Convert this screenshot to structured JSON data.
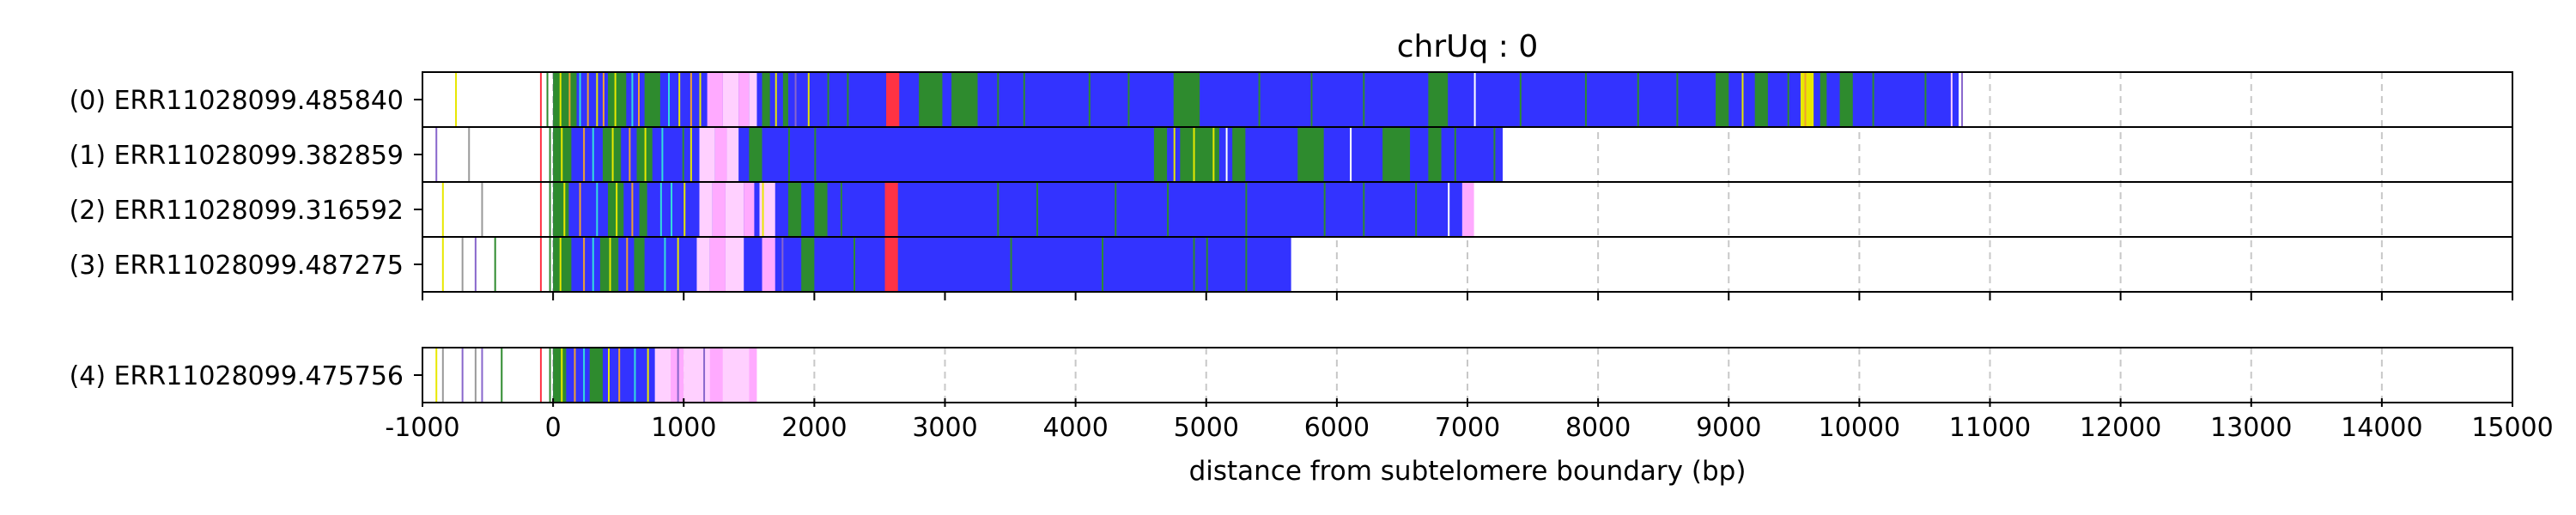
{
  "chart_data": {
    "type": "bar",
    "title": "chrUq : 0",
    "xlabel": "distance from subtelomere boundary (bp)",
    "ylabel": "",
    "xlim": [
      -1000,
      15000
    ],
    "xticks": [
      -1000,
      0,
      1000,
      2000,
      3000,
      4000,
      5000,
      6000,
      7000,
      8000,
      9000,
      10000,
      11000,
      12000,
      13000,
      14000,
      15000
    ],
    "grid": "vertical dashed at x ticks",
    "colors": {
      "main": "#3333ff",
      "green": "#2e8b2e",
      "yellow": "#e8e800",
      "orange": "#f0a030",
      "pink": "#ffaaff",
      "lightpink": "#ffd0ff",
      "red": "#ff3344",
      "cyan": "#33dddd",
      "grey": "#999999",
      "purple": "#8866cc"
    },
    "groups": [
      {
        "reads": [
          {
            "label": "(0) ERR11028099.485840",
            "read_end": 10800,
            "main_start": 0,
            "main_end": 10760,
            "segments": [
              {
                "s": 0,
                "e": 180,
                "c": "green"
              },
              {
                "s": 420,
                "e": 560,
                "c": "green"
              },
              {
                "s": 700,
                "e": 820,
                "c": "green"
              },
              {
                "s": 1180,
                "e": 1300,
                "c": "pink"
              },
              {
                "s": 1300,
                "e": 1420,
                "c": "lightpink"
              },
              {
                "s": 1420,
                "e": 1500,
                "c": "pink"
              },
              {
                "s": 1500,
                "e": 1560,
                "c": "lightpink"
              },
              {
                "s": 1600,
                "e": 1660,
                "c": "green"
              },
              {
                "s": 1760,
                "e": 1800,
                "c": "green"
              },
              {
                "s": 2550,
                "e": 2650,
                "c": "red"
              },
              {
                "s": 2800,
                "e": 2980,
                "c": "green"
              },
              {
                "s": 3050,
                "e": 3250,
                "c": "green"
              },
              {
                "s": 4750,
                "e": 4950,
                "c": "green"
              },
              {
                "s": 6700,
                "e": 6850,
                "c": "green"
              },
              {
                "s": 8900,
                "e": 9000,
                "c": "green"
              },
              {
                "s": 9200,
                "e": 9300,
                "c": "green"
              },
              {
                "s": 9550,
                "e": 9650,
                "c": "yellow"
              },
              {
                "s": 9700,
                "e": 9750,
                "c": "green"
              },
              {
                "s": 9850,
                "e": 9950,
                "c": "green"
              }
            ],
            "lines": [
              {
                "x": -750,
                "c": "yellow"
              },
              {
                "x": -100,
                "c": "red"
              },
              {
                "x": -50,
                "c": "green"
              },
              {
                "x": 50,
                "c": "yellow"
              },
              {
                "x": 120,
                "c": "orange"
              },
              {
                "x": 200,
                "c": "cyan"
              },
              {
                "x": 260,
                "c": "orange"
              },
              {
                "x": 330,
                "c": "yellow"
              },
              {
                "x": 380,
                "c": "orange"
              },
              {
                "x": 470,
                "c": "yellow"
              },
              {
                "x": 600,
                "c": "cyan"
              },
              {
                "x": 650,
                "c": "orange"
              },
              {
                "x": 880,
                "c": "cyan"
              },
              {
                "x": 960,
                "c": "yellow"
              },
              {
                "x": 1050,
                "c": "orange"
              },
              {
                "x": 1120,
                "c": "yellow"
              },
              {
                "x": 1700,
                "c": "yellow"
              },
              {
                "x": 1850,
                "c": "purple"
              },
              {
                "x": 1950,
                "c": "yellow"
              },
              {
                "x": 2100,
                "c": "green"
              },
              {
                "x": 2250,
                "c": "green"
              },
              {
                "x": 3400,
                "c": "green"
              },
              {
                "x": 3600,
                "c": "green"
              },
              {
                "x": 4100,
                "c": "green"
              },
              {
                "x": 4400,
                "c": "green"
              },
              {
                "x": 5400,
                "c": "green"
              },
              {
                "x": 5800,
                "c": "green"
              },
              {
                "x": 6200,
                "c": "green"
              },
              {
                "x": 7050,
                "c": "white"
              },
              {
                "x": 7400,
                "c": "green"
              },
              {
                "x": 7900,
                "c": "green"
              },
              {
                "x": 8300,
                "c": "green"
              },
              {
                "x": 8600,
                "c": "green"
              },
              {
                "x": 9100,
                "c": "yellow"
              },
              {
                "x": 9450,
                "c": "green"
              },
              {
                "x": 9580,
                "c": "orange"
              },
              {
                "x": 10100,
                "c": "green"
              },
              {
                "x": 10500,
                "c": "green"
              },
              {
                "x": 10700,
                "c": "lightpink"
              },
              {
                "x": 10780,
                "c": "purple"
              }
            ]
          },
          {
            "label": "(1) ERR11028099.382859",
            "read_end": 7270,
            "main_start": 0,
            "main_end": 7270,
            "segments": [
              {
                "s": 0,
                "e": 140,
                "c": "green"
              },
              {
                "s": 380,
                "e": 520,
                "c": "green"
              },
              {
                "s": 640,
                "e": 760,
                "c": "green"
              },
              {
                "s": 1120,
                "e": 1240,
                "c": "lightpink"
              },
              {
                "s": 1240,
                "e": 1330,
                "c": "pink"
              },
              {
                "s": 1330,
                "e": 1420,
                "c": "lightpink"
              },
              {
                "s": 1500,
                "e": 1600,
                "c": "green"
              },
              {
                "s": 4600,
                "e": 4700,
                "c": "green"
              },
              {
                "s": 4800,
                "e": 5100,
                "c": "green"
              },
              {
                "s": 5200,
                "e": 5300,
                "c": "green"
              },
              {
                "s": 5700,
                "e": 5900,
                "c": "green"
              },
              {
                "s": 6350,
                "e": 6560,
                "c": "green"
              },
              {
                "s": 6700,
                "e": 6800,
                "c": "green"
              }
            ],
            "lines": [
              {
                "x": -900,
                "c": "purple"
              },
              {
                "x": -650,
                "c": "grey"
              },
              {
                "x": -100,
                "c": "red"
              },
              {
                "x": -30,
                "c": "green"
              },
              {
                "x": 60,
                "c": "yellow"
              },
              {
                "x": 230,
                "c": "orange"
              },
              {
                "x": 300,
                "c": "cyan"
              },
              {
                "x": 450,
                "c": "yellow"
              },
              {
                "x": 580,
                "c": "orange"
              },
              {
                "x": 700,
                "c": "yellow"
              },
              {
                "x": 830,
                "c": "cyan"
              },
              {
                "x": 990,
                "c": "green"
              },
              {
                "x": 1050,
                "c": "yellow"
              },
              {
                "x": 1800,
                "c": "green"
              },
              {
                "x": 2000,
                "c": "green"
              },
              {
                "x": 4750,
                "c": "yellow"
              },
              {
                "x": 4900,
                "c": "yellow"
              },
              {
                "x": 5050,
                "c": "yellow"
              },
              {
                "x": 5150,
                "c": "white"
              },
              {
                "x": 6100,
                "c": "white"
              },
              {
                "x": 6900,
                "c": "green"
              },
              {
                "x": 7200,
                "c": "green"
              }
            ]
          },
          {
            "label": "(2) ERR11028099.316592",
            "read_end": 7050,
            "main_start": 0,
            "main_end": 6960,
            "segments": [
              {
                "s": 0,
                "e": 120,
                "c": "green"
              },
              {
                "s": 420,
                "e": 540,
                "c": "green"
              },
              {
                "s": 660,
                "e": 720,
                "c": "green"
              },
              {
                "s": 1120,
                "e": 1220,
                "c": "lightpink"
              },
              {
                "s": 1220,
                "e": 1320,
                "c": "pink"
              },
              {
                "s": 1320,
                "e": 1460,
                "c": "lightpink"
              },
              {
                "s": 1460,
                "e": 1540,
                "c": "pink"
              },
              {
                "s": 1580,
                "e": 1700,
                "c": "lightpink"
              },
              {
                "s": 1800,
                "e": 1900,
                "c": "green"
              },
              {
                "s": 2000,
                "e": 2100,
                "c": "green"
              },
              {
                "s": 2540,
                "e": 2640,
                "c": "red"
              },
              {
                "s": 6960,
                "e": 7050,
                "c": "pink"
              }
            ],
            "lines": [
              {
                "x": -850,
                "c": "yellow"
              },
              {
                "x": -550,
                "c": "grey"
              },
              {
                "x": -100,
                "c": "red"
              },
              {
                "x": -30,
                "c": "green"
              },
              {
                "x": 80,
                "c": "yellow"
              },
              {
                "x": 200,
                "c": "orange"
              },
              {
                "x": 330,
                "c": "cyan"
              },
              {
                "x": 480,
                "c": "yellow"
              },
              {
                "x": 600,
                "c": "orange"
              },
              {
                "x": 820,
                "c": "cyan"
              },
              {
                "x": 900,
                "c": "cyan"
              },
              {
                "x": 1000,
                "c": "yellow"
              },
              {
                "x": 1600,
                "c": "yellow"
              },
              {
                "x": 2200,
                "c": "green"
              },
              {
                "x": 3400,
                "c": "green"
              },
              {
                "x": 3700,
                "c": "green"
              },
              {
                "x": 4300,
                "c": "green"
              },
              {
                "x": 4700,
                "c": "green"
              },
              {
                "x": 5300,
                "c": "green"
              },
              {
                "x": 5900,
                "c": "green"
              },
              {
                "x": 6200,
                "c": "green"
              },
              {
                "x": 6600,
                "c": "green"
              },
              {
                "x": 6850,
                "c": "white"
              }
            ]
          },
          {
            "label": "(3) ERR11028099.487275",
            "read_end": 5650,
            "main_start": 0,
            "main_end": 5650,
            "segments": [
              {
                "s": 0,
                "e": 140,
                "c": "green"
              },
              {
                "s": 360,
                "e": 500,
                "c": "green"
              },
              {
                "s": 620,
                "e": 700,
                "c": "green"
              },
              {
                "s": 1100,
                "e": 1200,
                "c": "lightpink"
              },
              {
                "s": 1200,
                "e": 1320,
                "c": "pink"
              },
              {
                "s": 1320,
                "e": 1460,
                "c": "lightpink"
              },
              {
                "s": 1600,
                "e": 1700,
                "c": "pink"
              },
              {
                "s": 1900,
                "e": 2000,
                "c": "green"
              },
              {
                "s": 2540,
                "e": 2640,
                "c": "red"
              }
            ],
            "lines": [
              {
                "x": -850,
                "c": "yellow"
              },
              {
                "x": -700,
                "c": "grey"
              },
              {
                "x": -600,
                "c": "purple"
              },
              {
                "x": -450,
                "c": "green"
              },
              {
                "x": -100,
                "c": "red"
              },
              {
                "x": -30,
                "c": "green"
              },
              {
                "x": 50,
                "c": "yellow"
              },
              {
                "x": 230,
                "c": "orange"
              },
              {
                "x": 300,
                "c": "cyan"
              },
              {
                "x": 430,
                "c": "yellow"
              },
              {
                "x": 560,
                "c": "orange"
              },
              {
                "x": 850,
                "c": "cyan"
              },
              {
                "x": 950,
                "c": "yellow"
              },
              {
                "x": 1750,
                "c": "purple"
              },
              {
                "x": 2300,
                "c": "green"
              },
              {
                "x": 3500,
                "c": "green"
              },
              {
                "x": 4200,
                "c": "green"
              },
              {
                "x": 4900,
                "c": "green"
              },
              {
                "x": 5000,
                "c": "green"
              },
              {
                "x": 5300,
                "c": "green"
              }
            ]
          }
        ]
      },
      {
        "reads": [
          {
            "label": "(4) ERR11028099.475756",
            "read_end": 1560,
            "main_start": 0,
            "main_end": 780,
            "segments": [
              {
                "s": 0,
                "e": 100,
                "c": "green"
              },
              {
                "s": 280,
                "e": 380,
                "c": "green"
              },
              {
                "s": 780,
                "e": 900,
                "c": "lightpink"
              },
              {
                "s": 900,
                "e": 1000,
                "c": "pink"
              },
              {
                "s": 1000,
                "e": 1200,
                "c": "lightpink"
              },
              {
                "s": 1200,
                "e": 1300,
                "c": "pink"
              },
              {
                "s": 1300,
                "e": 1500,
                "c": "lightpink"
              },
              {
                "s": 1500,
                "e": 1560,
                "c": "pink"
              }
            ],
            "lines": [
              {
                "x": -900,
                "c": "yellow"
              },
              {
                "x": -850,
                "c": "grey"
              },
              {
                "x": -700,
                "c": "purple"
              },
              {
                "x": -600,
                "c": "grey"
              },
              {
                "x": -550,
                "c": "purple"
              },
              {
                "x": -400,
                "c": "green"
              },
              {
                "x": -100,
                "c": "red"
              },
              {
                "x": -30,
                "c": "green"
              },
              {
                "x": 60,
                "c": "yellow"
              },
              {
                "x": 160,
                "c": "orange"
              },
              {
                "x": 230,
                "c": "cyan"
              },
              {
                "x": 420,
                "c": "yellow"
              },
              {
                "x": 500,
                "c": "orange"
              },
              {
                "x": 620,
                "c": "cyan"
              },
              {
                "x": 720,
                "c": "yellow"
              },
              {
                "x": 950,
                "c": "purple"
              },
              {
                "x": 1150,
                "c": "purple"
              }
            ]
          }
        ]
      }
    ]
  }
}
